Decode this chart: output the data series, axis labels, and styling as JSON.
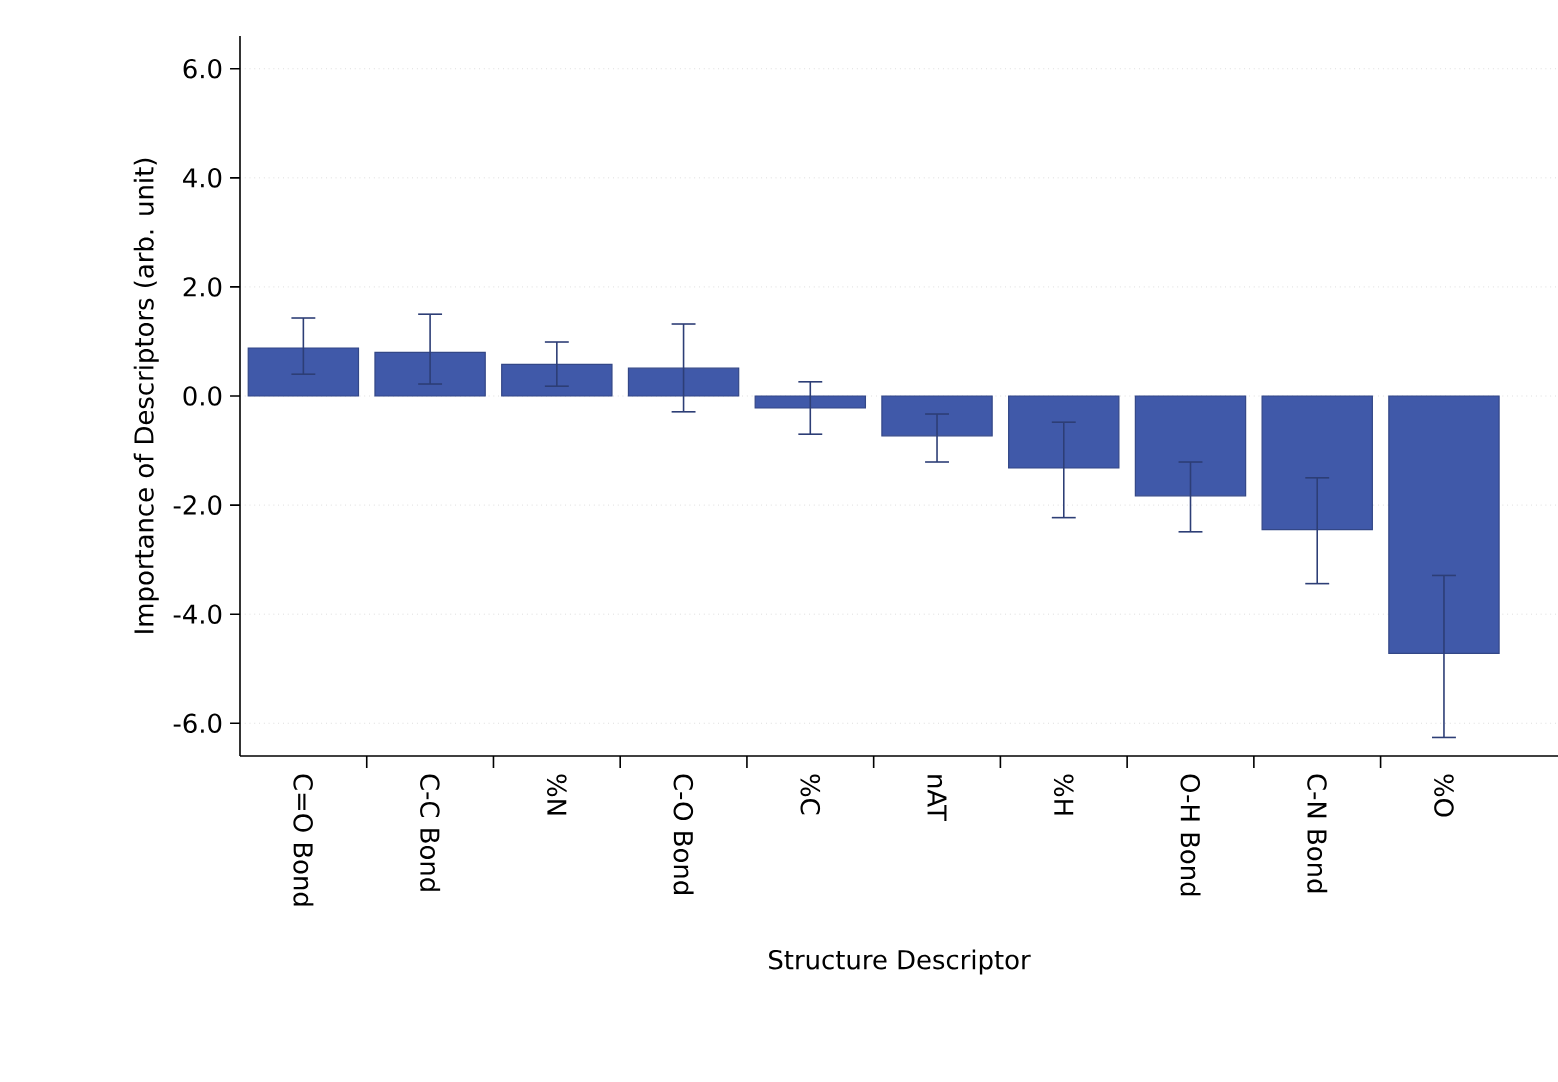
{
  "chart_data": {
    "type": "bar",
    "xlabel": "Structure Descriptor",
    "ylabel": "Importance of Descriptors (arb. unit)",
    "categories": [
      "C=O Bond",
      "C-C Bond",
      "%N",
      "C-O Bond",
      "%C",
      "nAT",
      "%H",
      "O-H Bond",
      "C-N Bond",
      "%O"
    ],
    "values": [
      0.88,
      0.8,
      0.58,
      0.51,
      -0.22,
      -0.73,
      -1.32,
      -1.83,
      -2.45,
      -4.72
    ],
    "errors": [
      [
        0.4,
        1.43
      ],
      [
        0.22,
        1.5
      ],
      [
        0.18,
        0.99
      ],
      [
        -0.29,
        1.32
      ],
      [
        -0.7,
        0.26
      ],
      [
        -1.21,
        -0.33
      ],
      [
        -2.23,
        -0.48
      ],
      [
        -2.49,
        -1.21
      ],
      [
        -3.44,
        -1.5
      ],
      [
        -6.26,
        -3.29
      ]
    ],
    "color": "#4059a9",
    "ylim": [
      -6.6,
      6.6
    ],
    "yticks": [
      {
        "value": -6,
        "label": "-6.0"
      },
      {
        "value": -4,
        "label": "-4.0"
      },
      {
        "value": -2,
        "label": "-2.0"
      },
      {
        "value": 0,
        "label": "0.0"
      },
      {
        "value": 2,
        "label": "2.0"
      },
      {
        "value": 4,
        "label": "4.0"
      },
      {
        "value": 6,
        "label": "6.0"
      }
    ],
    "grid": "y"
  }
}
